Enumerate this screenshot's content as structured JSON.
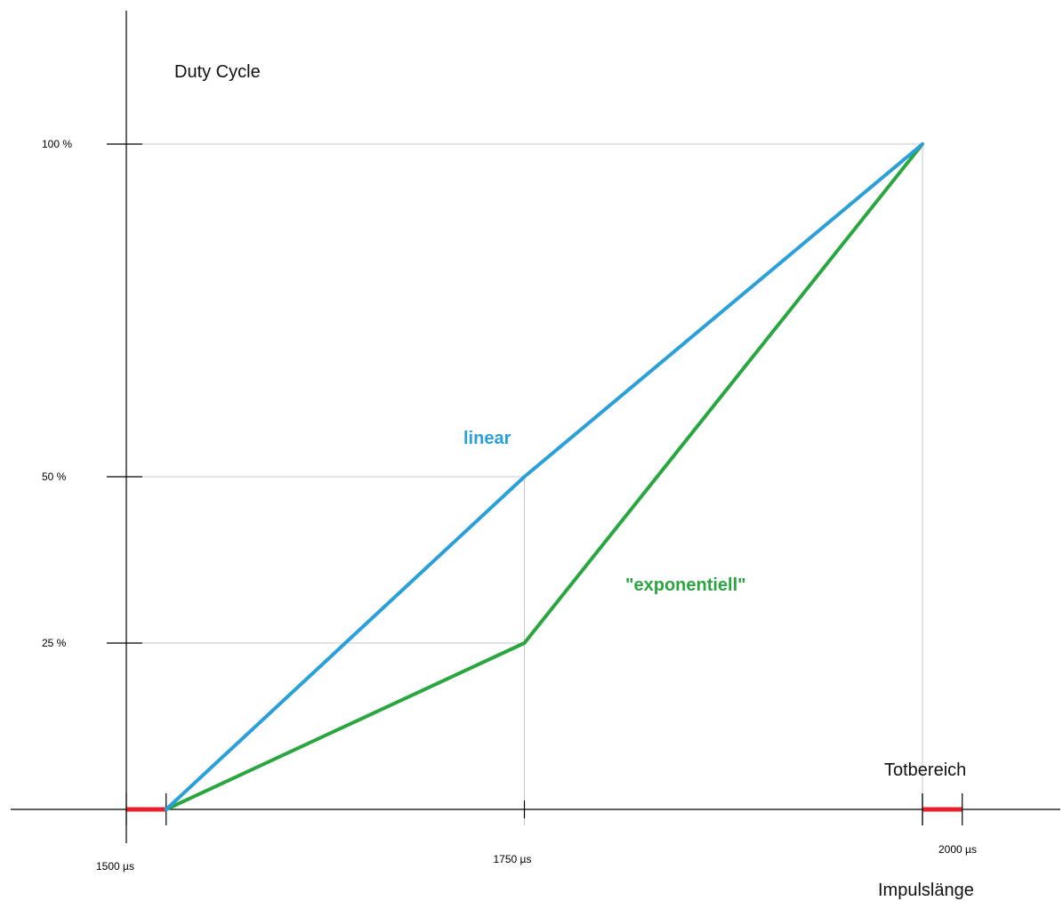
{
  "chart_data": {
    "type": "line",
    "ylabel": "Duty Cycle",
    "xlabel": "Impulslänge",
    "x_ticks": [
      {
        "value": 1500,
        "label": "1500 µs"
      },
      {
        "value": 1750,
        "label": "1750 µs"
      },
      {
        "value": 2000,
        "label": "2000 µs"
      }
    ],
    "y_ticks": [
      {
        "value": 25,
        "label": "25 %"
      },
      {
        "value": 50,
        "label": "50 %"
      },
      {
        "value": 100,
        "label": "100 %"
      }
    ],
    "xlim": [
      1500,
      2000
    ],
    "ylim": [
      0,
      100
    ],
    "grid": false,
    "series": [
      {
        "name": "linear",
        "color": "#2a9fd8",
        "points": [
          [
            1525,
            0
          ],
          [
            1750,
            50
          ],
          [
            2000,
            100
          ]
        ]
      },
      {
        "name": "\"exponentiell\"",
        "color": "#2aa640",
        "points": [
          [
            1525,
            0
          ],
          [
            1750,
            25
          ],
          [
            2000,
            100
          ]
        ]
      }
    ],
    "dead_band": {
      "label": "Totbereich",
      "color": "#e8202a",
      "ranges": [
        [
          1500,
          1525
        ],
        [
          2000,
          2025
        ]
      ]
    }
  }
}
